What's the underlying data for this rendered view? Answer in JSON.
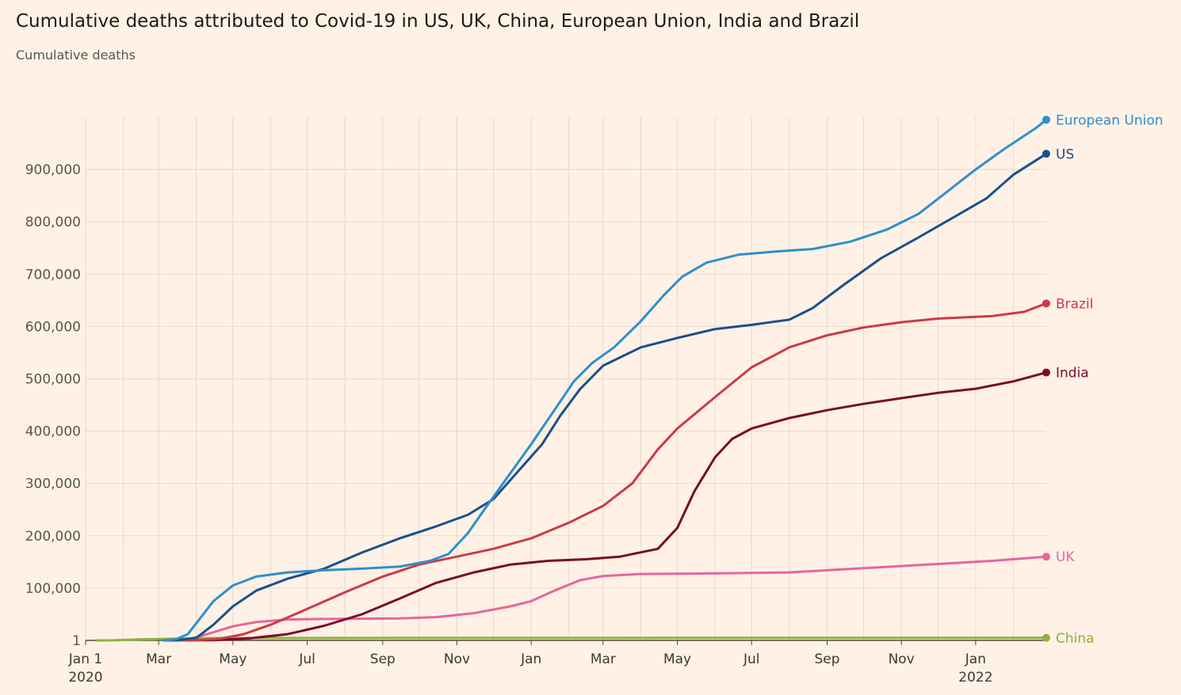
{
  "chart_data": {
    "type": "line",
    "title": "Cumulative deaths attributed to Covid-19 in US, UK, China, European Union, India and Brazil",
    "subtitle": "Cumulative deaths",
    "ylabel": "Cumulative deaths",
    "xlabel": "",
    "ylim": [
      0,
      1000000
    ],
    "xlim": [
      "2020-01-01",
      "2022-02-28"
    ],
    "yticks": [
      {
        "value": 1,
        "label": "1"
      },
      {
        "value": 100000,
        "label": "100,000"
      },
      {
        "value": 200000,
        "label": "200,000"
      },
      {
        "value": 300000,
        "label": "300,000"
      },
      {
        "value": 400000,
        "label": "400,000"
      },
      {
        "value": 500000,
        "label": "500,000"
      },
      {
        "value": 600000,
        "label": "600,000"
      },
      {
        "value": 700000,
        "label": "700,000"
      },
      {
        "value": 800000,
        "label": "800,000"
      },
      {
        "value": 900000,
        "label": "900,000"
      }
    ],
    "xticks": [
      {
        "date": "2020-01-01",
        "label": "Jan 1",
        "sublabel": "2020"
      },
      {
        "date": "2020-03-01",
        "label": "Mar"
      },
      {
        "date": "2020-05-01",
        "label": "May"
      },
      {
        "date": "2020-07-01",
        "label": "Jul"
      },
      {
        "date": "2020-09-01",
        "label": "Sep"
      },
      {
        "date": "2020-11-01",
        "label": "Nov"
      },
      {
        "date": "2021-01-01",
        "label": "Jan"
      },
      {
        "date": "2021-03-01",
        "label": "Mar"
      },
      {
        "date": "2021-05-01",
        "label": "May"
      },
      {
        "date": "2021-07-01",
        "label": "Jul"
      },
      {
        "date": "2021-09-01",
        "label": "Sep"
      },
      {
        "date": "2021-11-01",
        "label": "Nov"
      },
      {
        "date": "2022-01-01",
        "label": "Jan",
        "sublabel": "2022"
      }
    ],
    "grid": true,
    "legend": "direct labels at line ends (right)",
    "series": [
      {
        "name": "European Union",
        "color": "#2e8fcc",
        "points": [
          [
            "2020-03-05",
            0
          ],
          [
            "2020-03-15",
            2000
          ],
          [
            "2020-03-25",
            12000
          ],
          [
            "2020-04-05",
            45000
          ],
          [
            "2020-04-15",
            75000
          ],
          [
            "2020-05-01",
            105000
          ],
          [
            "2020-05-20",
            122000
          ],
          [
            "2020-06-15",
            130000
          ],
          [
            "2020-07-15",
            134000
          ],
          [
            "2020-08-15",
            137000
          ],
          [
            "2020-09-15",
            141000
          ],
          [
            "2020-10-10",
            152000
          ],
          [
            "2020-10-25",
            165000
          ],
          [
            "2020-11-10",
            205000
          ],
          [
            "2020-11-25",
            255000
          ],
          [
            "2020-12-15",
            320000
          ],
          [
            "2021-01-01",
            375000
          ],
          [
            "2021-01-20",
            440000
          ],
          [
            "2021-02-05",
            495000
          ],
          [
            "2021-02-20",
            530000
          ],
          [
            "2021-03-10",
            560000
          ],
          [
            "2021-04-01",
            610000
          ],
          [
            "2021-04-20",
            660000
          ],
          [
            "2021-05-05",
            695000
          ],
          [
            "2021-05-25",
            722000
          ],
          [
            "2021-06-20",
            737000
          ],
          [
            "2021-07-20",
            743000
          ],
          [
            "2021-08-20",
            748000
          ],
          [
            "2021-09-20",
            762000
          ],
          [
            "2021-10-20",
            785000
          ],
          [
            "2021-11-15",
            815000
          ],
          [
            "2021-12-10",
            860000
          ],
          [
            "2022-01-01",
            900000
          ],
          [
            "2022-01-25",
            940000
          ],
          [
            "2022-02-20",
            980000
          ],
          [
            "2022-02-28",
            995000
          ]
        ]
      },
      {
        "name": "US",
        "color": "#19508c",
        "points": [
          [
            "2020-03-05",
            0
          ],
          [
            "2020-03-15",
            100
          ],
          [
            "2020-04-01",
            5000
          ],
          [
            "2020-04-15",
            30000
          ],
          [
            "2020-05-01",
            65000
          ],
          [
            "2020-05-20",
            95000
          ],
          [
            "2020-06-15",
            118000
          ],
          [
            "2020-07-15",
            137000
          ],
          [
            "2020-08-15",
            168000
          ],
          [
            "2020-09-15",
            195000
          ],
          [
            "2020-10-15",
            218000
          ],
          [
            "2020-11-10",
            240000
          ],
          [
            "2020-12-01",
            270000
          ],
          [
            "2020-12-20",
            320000
          ],
          [
            "2021-01-10",
            375000
          ],
          [
            "2021-01-25",
            430000
          ],
          [
            "2021-02-10",
            480000
          ],
          [
            "2021-03-01",
            525000
          ],
          [
            "2021-04-01",
            560000
          ],
          [
            "2021-05-01",
            578000
          ],
          [
            "2021-06-01",
            595000
          ],
          [
            "2021-07-01",
            603000
          ],
          [
            "2021-08-01",
            613000
          ],
          [
            "2021-08-20",
            635000
          ],
          [
            "2021-09-15",
            680000
          ],
          [
            "2021-10-15",
            730000
          ],
          [
            "2021-11-15",
            770000
          ],
          [
            "2021-12-15",
            810000
          ],
          [
            "2022-01-10",
            845000
          ],
          [
            "2022-02-01",
            890000
          ],
          [
            "2022-02-28",
            930000
          ]
        ]
      },
      {
        "name": "Brazil",
        "color": "#cc3a48",
        "points": [
          [
            "2020-03-15",
            0
          ],
          [
            "2020-04-01",
            400
          ],
          [
            "2020-04-20",
            3000
          ],
          [
            "2020-05-10",
            12000
          ],
          [
            "2020-06-01",
            30000
          ],
          [
            "2020-07-01",
            60000
          ],
          [
            "2020-08-01",
            92000
          ],
          [
            "2020-09-01",
            122000
          ],
          [
            "2020-10-01",
            145000
          ],
          [
            "2020-11-01",
            160000
          ],
          [
            "2020-12-01",
            175000
          ],
          [
            "2021-01-01",
            195000
          ],
          [
            "2021-02-01",
            225000
          ],
          [
            "2021-03-01",
            257000
          ],
          [
            "2021-03-25",
            300000
          ],
          [
            "2021-04-15",
            365000
          ],
          [
            "2021-05-01",
            405000
          ],
          [
            "2021-06-01",
            465000
          ],
          [
            "2021-07-01",
            522000
          ],
          [
            "2021-08-01",
            560000
          ],
          [
            "2021-09-01",
            583000
          ],
          [
            "2021-10-01",
            598000
          ],
          [
            "2021-11-01",
            608000
          ],
          [
            "2021-12-01",
            615000
          ],
          [
            "2022-01-15",
            620000
          ],
          [
            "2022-02-10",
            628000
          ],
          [
            "2022-02-28",
            644000
          ]
        ]
      },
      {
        "name": "India",
        "color": "#7a0a2c",
        "points": [
          [
            "2020-03-15",
            0
          ],
          [
            "2020-04-15",
            500
          ],
          [
            "2020-05-15",
            4000
          ],
          [
            "2020-06-15",
            12000
          ],
          [
            "2020-07-15",
            28000
          ],
          [
            "2020-08-15",
            50000
          ],
          [
            "2020-09-15",
            80000
          ],
          [
            "2020-10-15",
            110000
          ],
          [
            "2020-11-15",
            130000
          ],
          [
            "2020-12-15",
            145000
          ],
          [
            "2021-01-15",
            152000
          ],
          [
            "2021-02-15",
            155000
          ],
          [
            "2021-03-15",
            160000
          ],
          [
            "2021-04-15",
            175000
          ],
          [
            "2021-05-01",
            215000
          ],
          [
            "2021-05-15",
            285000
          ],
          [
            "2021-06-01",
            350000
          ],
          [
            "2021-06-15",
            385000
          ],
          [
            "2021-07-01",
            405000
          ],
          [
            "2021-08-01",
            425000
          ],
          [
            "2021-09-01",
            440000
          ],
          [
            "2021-10-01",
            452000
          ],
          [
            "2021-11-01",
            463000
          ],
          [
            "2021-12-01",
            473000
          ],
          [
            "2022-01-01",
            481000
          ],
          [
            "2022-02-01",
            495000
          ],
          [
            "2022-02-28",
            512000
          ]
        ]
      },
      {
        "name": "UK",
        "color": "#e8659b",
        "points": [
          [
            "2020-03-10",
            0
          ],
          [
            "2020-03-25",
            1500
          ],
          [
            "2020-04-10",
            12000
          ],
          [
            "2020-05-01",
            27000
          ],
          [
            "2020-05-20",
            35000
          ],
          [
            "2020-06-15",
            40000
          ],
          [
            "2020-07-15",
            41000
          ],
          [
            "2020-08-15",
            41500
          ],
          [
            "2020-09-15",
            42000
          ],
          [
            "2020-10-15",
            44500
          ],
          [
            "2020-11-15",
            52000
          ],
          [
            "2020-12-15",
            65000
          ],
          [
            "2021-01-01",
            75000
          ],
          [
            "2021-01-20",
            95000
          ],
          [
            "2021-02-10",
            115000
          ],
          [
            "2021-03-01",
            123000
          ],
          [
            "2021-04-01",
            127000
          ],
          [
            "2021-06-01",
            128000
          ],
          [
            "2021-08-01",
            130000
          ],
          [
            "2021-10-01",
            138000
          ],
          [
            "2021-12-01",
            146000
          ],
          [
            "2022-01-15",
            152000
          ],
          [
            "2022-02-28",
            160000
          ]
        ]
      },
      {
        "name": "China",
        "color": "#8fb13e",
        "points": [
          [
            "2020-01-10",
            0
          ],
          [
            "2020-01-25",
            100
          ],
          [
            "2020-02-15",
            2000
          ],
          [
            "2020-03-15",
            3200
          ],
          [
            "2020-04-20",
            4600
          ],
          [
            "2021-06-01",
            4800
          ],
          [
            "2022-02-28",
            4900
          ]
        ]
      }
    ]
  }
}
